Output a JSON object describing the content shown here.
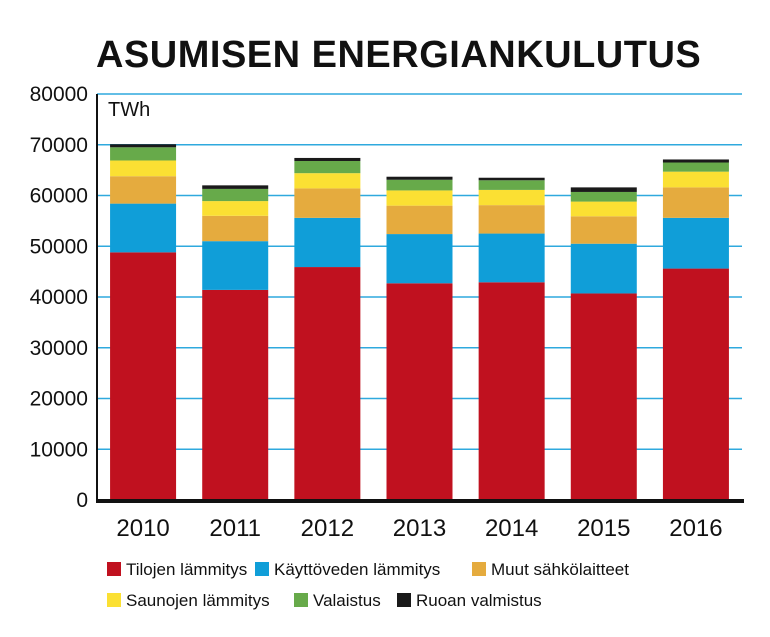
{
  "chart_data": {
    "type": "bar",
    "stacked": true,
    "title": "ASUMISEN ENERGIANKULUTUS",
    "unit_label": "TWh",
    "xlabel": "",
    "ylabel": "",
    "ylim": [
      0,
      80000
    ],
    "yticks": [
      "0",
      "10000",
      "20000",
      "30000",
      "40000",
      "50000",
      "60000",
      "70000",
      "80000"
    ],
    "grid": true,
    "legend_position": "bottom",
    "categories": [
      "2010",
      "2011",
      "2012",
      "2013",
      "2014",
      "2015",
      "2016"
    ],
    "series": [
      {
        "name": "Tilojen lämmitys",
        "color": "#c0111f",
        "values": [
          48800,
          41400,
          45900,
          42700,
          42900,
          40700,
          45600
        ]
      },
      {
        "name": "Käyttöveden lämmitys",
        "color": "#109ed8",
        "values": [
          9600,
          9600,
          9700,
          9700,
          9600,
          9800,
          10000
        ]
      },
      {
        "name": "Muut sähkölaitteet",
        "color": "#e5ab3e",
        "values": [
          5400,
          5000,
          5800,
          5600,
          5600,
          5400,
          6000
        ]
      },
      {
        "name": "Saunojen lämmitys",
        "color": "#fbe033",
        "values": [
          3100,
          2900,
          3000,
          3000,
          3000,
          2900,
          3100
        ]
      },
      {
        "name": "Valaistus",
        "color": "#67aa4a",
        "values": [
          2600,
          2400,
          2400,
          2100,
          1900,
          1900,
          1800
        ]
      },
      {
        "name": "Ruoan valmistus",
        "color": "#1a1a1a",
        "values": [
          600,
          700,
          600,
          600,
          500,
          900,
          600
        ]
      }
    ]
  }
}
